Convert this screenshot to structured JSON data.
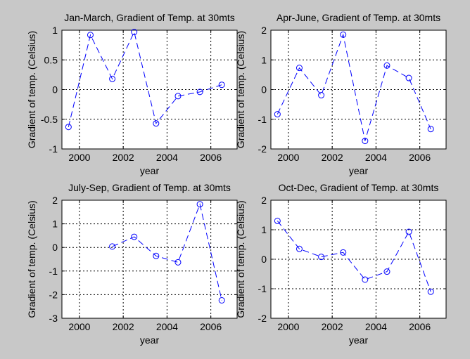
{
  "colors": {
    "figure_bg": "#c8c8c8",
    "axes_bg": "#ffffff",
    "series": "#0000ff",
    "grid": "#000000"
  },
  "chart_data": [
    {
      "type": "line",
      "title": "Jan-March, Gradient of Temp. at 30mts",
      "xlabel": "year",
      "ylabel": "Gradient of temp. (Celsius)",
      "xlim": [
        1999.2,
        2007.2
      ],
      "ylim": [
        -1,
        1
      ],
      "xticks": [
        2000,
        2002,
        2004,
        2006
      ],
      "xtick_labels": [
        "2000",
        "2002",
        "2004",
        "2006"
      ],
      "yticks": [
        -1,
        -0.5,
        0,
        0.5,
        1
      ],
      "ytick_labels": [
        "-1",
        "-0.5",
        "0",
        "0.5",
        "1"
      ],
      "grid": true,
      "line_style": "dashed",
      "marker": "circle",
      "x": [
        1999.5,
        2000.5,
        2001.5,
        2002.5,
        2003.5,
        2004.5,
        2005.5,
        2006.5
      ],
      "y": [
        -0.63,
        0.92,
        0.18,
        0.97,
        -0.57,
        -0.11,
        -0.04,
        0.08
      ]
    },
    {
      "type": "line",
      "title": "Apr-June, Gradient of Temp. at 30mts",
      "xlabel": "year",
      "ylabel": "Gradient of temp. (Celsius)",
      "xlim": [
        1999.2,
        2007.2
      ],
      "ylim": [
        -2,
        2
      ],
      "xticks": [
        2000,
        2002,
        2004,
        2006
      ],
      "xtick_labels": [
        "2000",
        "2002",
        "2004",
        "2006"
      ],
      "yticks": [
        -2,
        -1,
        0,
        1,
        2
      ],
      "ytick_labels": [
        "-2",
        "-1",
        "0",
        "1",
        "2"
      ],
      "grid": true,
      "line_style": "dashed",
      "marker": "circle",
      "x": [
        1999.5,
        2000.5,
        2001.5,
        2002.5,
        2003.5,
        2004.5,
        2005.5,
        2006.5
      ],
      "y": [
        -0.83,
        0.73,
        -0.19,
        1.85,
        -1.73,
        0.81,
        0.39,
        -1.33
      ]
    },
    {
      "type": "line",
      "title": "July-Sep, Gradient of Temp. at 30mts",
      "xlabel": "year",
      "ylabel": "Gradient of temp. (Celsius)",
      "xlim": [
        1999.2,
        2007.2
      ],
      "ylim": [
        -3,
        2
      ],
      "xticks": [
        2000,
        2002,
        2004,
        2006
      ],
      "xtick_labels": [
        "2000",
        "2002",
        "2004",
        "2006"
      ],
      "yticks": [
        -3,
        -2,
        -1,
        0,
        1,
        2
      ],
      "ytick_labels": [
        "-3",
        "-2",
        "-1",
        "0",
        "1",
        "2"
      ],
      "grid": true,
      "line_style": "dashed",
      "marker": "circle",
      "x": [
        2001.5,
        2002.5,
        2003.5,
        2004.5,
        2005.5,
        2006.5
      ],
      "y": [
        0.04,
        0.45,
        -0.36,
        -0.63,
        1.83,
        -2.24
      ]
    },
    {
      "type": "line",
      "title": "Oct-Dec, Gradient of Temp. at 30mts",
      "xlabel": "year",
      "ylabel": "Gradient of temp. (Celsius)",
      "xlim": [
        1999.2,
        2007.2
      ],
      "ylim": [
        -2,
        2
      ],
      "xticks": [
        2000,
        2002,
        2004,
        2006
      ],
      "xtick_labels": [
        "2000",
        "2002",
        "2004",
        "2006"
      ],
      "yticks": [
        -2,
        -1,
        0,
        1,
        2
      ],
      "ytick_labels": [
        "-2",
        "-1",
        "0",
        "1",
        "2"
      ],
      "grid": true,
      "line_style": "dashed",
      "marker": "circle",
      "x": [
        1999.5,
        2000.5,
        2001.5,
        2002.5,
        2003.5,
        2004.5,
        2005.5,
        2006.5
      ],
      "y": [
        1.3,
        0.35,
        0.08,
        0.23,
        -0.69,
        -0.42,
        0.93,
        -1.1
      ]
    }
  ]
}
